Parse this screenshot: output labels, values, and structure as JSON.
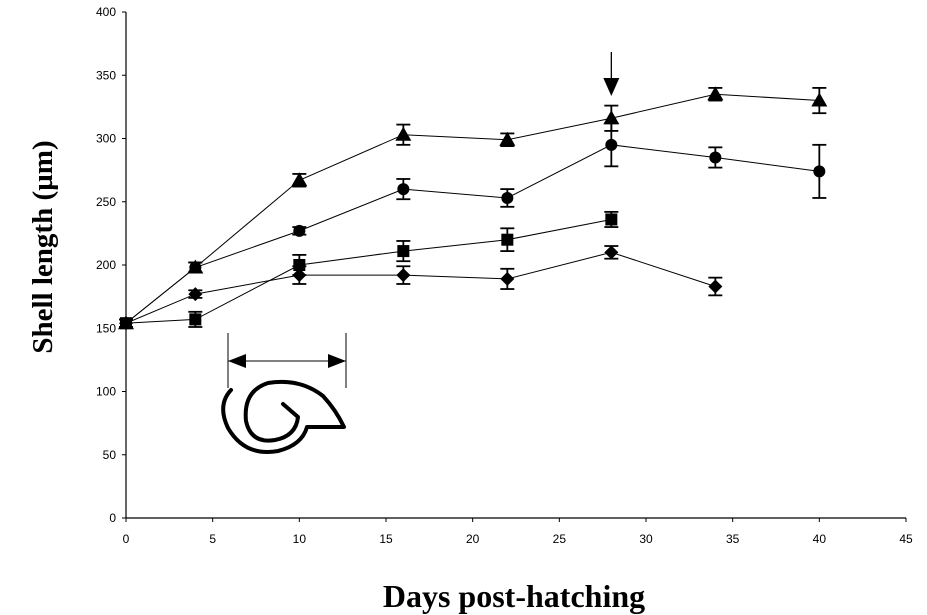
{
  "chart_data": {
    "type": "line",
    "xlabel": "Days post-hatching",
    "ylabel": "Shell length (µm)",
    "xlim": [
      0,
      45
    ],
    "ylim": [
      0,
      400
    ],
    "xticks": [
      0,
      5,
      10,
      15,
      20,
      25,
      30,
      35,
      40,
      45
    ],
    "yticks": [
      0,
      50,
      100,
      150,
      200,
      250,
      300,
      350,
      400
    ],
    "grid": false,
    "series": [
      {
        "marker": "triangle",
        "x": [
          0,
          4,
          10,
          16,
          22,
          28,
          34,
          40
        ],
        "values": [
          154,
          198,
          267,
          303,
          299,
          316,
          335,
          330
        ],
        "errors": [
          3,
          4,
          5,
          8,
          5,
          10,
          5,
          10
        ]
      },
      {
        "marker": "circle",
        "x": [
          0,
          4,
          10,
          16,
          22,
          28,
          34,
          40
        ],
        "values": [
          154,
          198,
          227,
          260,
          253,
          295,
          285,
          274
        ],
        "errors": [
          3,
          4,
          3,
          8,
          7,
          17,
          8,
          21
        ]
      },
      {
        "marker": "square",
        "x": [
          0,
          4,
          10,
          16,
          22,
          28
        ],
        "values": [
          154,
          157,
          200,
          211,
          220,
          236
        ],
        "errors": [
          3,
          6,
          8,
          8,
          9,
          6
        ]
      },
      {
        "marker": "diamond",
        "x": [
          0,
          4,
          10,
          16,
          22,
          28,
          34
        ],
        "values": [
          154,
          177,
          192,
          192,
          189,
          210,
          183
        ],
        "errors": [
          3,
          3,
          7,
          7,
          8,
          5,
          7
        ]
      }
    ],
    "annotations": [
      {
        "type": "arrow-down",
        "x": 28
      },
      {
        "type": "shell-length-diagram",
        "icon": "shell-icon"
      }
    ]
  }
}
